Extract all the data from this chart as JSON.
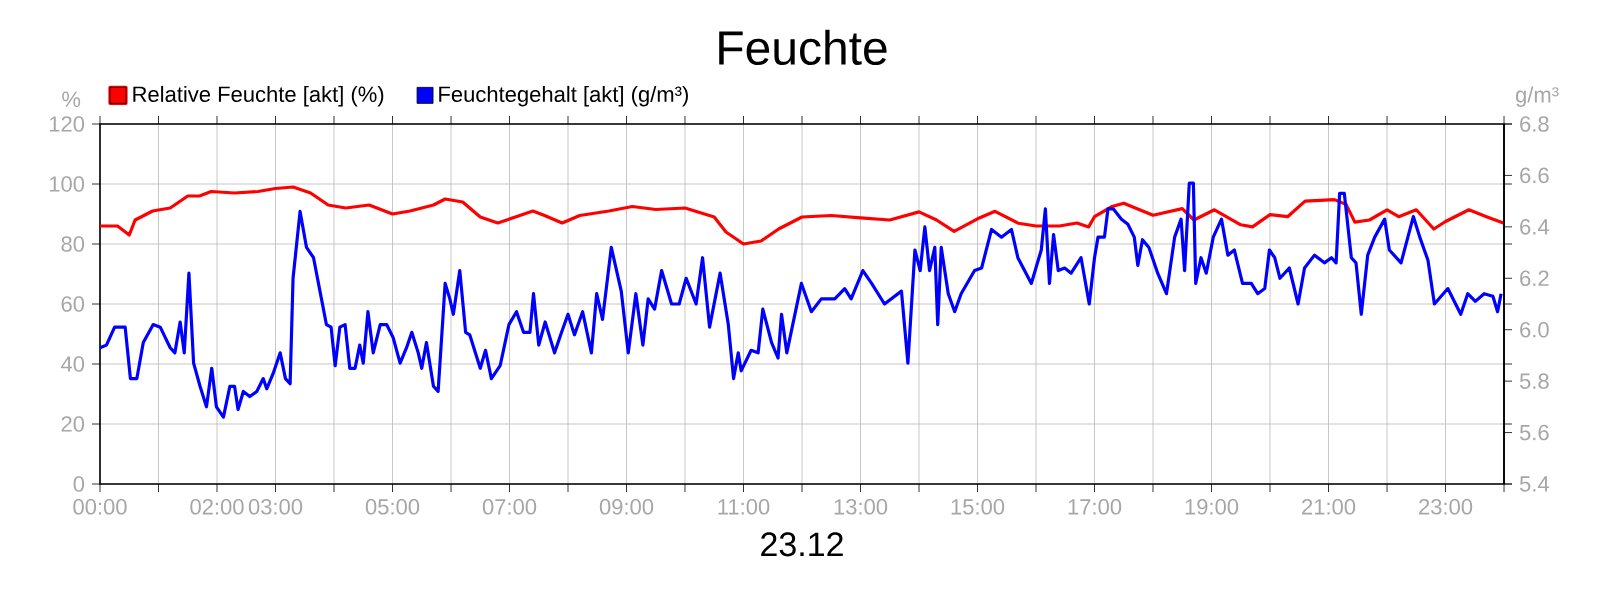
{
  "chart_data": {
    "type": "line",
    "title": "Feuchte",
    "xlabel": "23.12",
    "ylabel": "%",
    "y2label": "g/m³",
    "xlim": [
      0,
      24
    ],
    "xticks": [
      {
        "value": 0,
        "label": "00:00"
      },
      {
        "value": 1,
        "label": null
      },
      {
        "value": 2,
        "label": "02:00"
      },
      {
        "value": 3,
        "label": "03:00"
      },
      {
        "value": 4,
        "label": null
      },
      {
        "value": 5,
        "label": "05:00"
      },
      {
        "value": 6,
        "label": null
      },
      {
        "value": 7,
        "label": "07:00"
      },
      {
        "value": 8,
        "label": null
      },
      {
        "value": 9,
        "label": "09:00"
      },
      {
        "value": 10,
        "label": null
      },
      {
        "value": 11,
        "label": "11:00"
      },
      {
        "value": 12,
        "label": null
      },
      {
        "value": 13,
        "label": "13:00"
      },
      {
        "value": 14,
        "label": null
      },
      {
        "value": 15,
        "label": "15:00"
      },
      {
        "value": 16,
        "label": null
      },
      {
        "value": 17,
        "label": "17:00"
      },
      {
        "value": 18,
        "label": null
      },
      {
        "value": 19,
        "label": "19:00"
      },
      {
        "value": 20,
        "label": null
      },
      {
        "value": 21,
        "label": "21:00"
      },
      {
        "value": 22,
        "label": null
      },
      {
        "value": 23,
        "label": "23:00"
      },
      {
        "value": 24,
        "label": null
      }
    ],
    "ylim": [
      0,
      120
    ],
    "yticks": [
      0,
      20,
      40,
      60,
      80,
      100,
      120
    ],
    "y2lim": [
      5.4,
      6.8
    ],
    "y2ticks": [
      5.4,
      5.6,
      5.8,
      {
        "value": 6,
        "label": "6.0"
      },
      6.2,
      6.4,
      6.6,
      6.8
    ],
    "grid": true,
    "legend": "top left",
    "series": [
      {
        "name": "Relative Feuchte [akt] (%)",
        "color": "#ff0000",
        "x": [
          0,
          0.3,
          0.5,
          0.6,
          0.9,
          1.2,
          1.5,
          1.7,
          1.9,
          2.3,
          2.7,
          3.0,
          3.3,
          3.6,
          3.9,
          4.2,
          4.6,
          5.0,
          5.3,
          5.7,
          5.9,
          6.2,
          6.5,
          6.8,
          7.1,
          7.4,
          7.6,
          7.9,
          8.2,
          8.7,
          9.1,
          9.5,
          10.0,
          10.5,
          10.7,
          11.0,
          11.3,
          11.6,
          12.0,
          12.5,
          13.0,
          13.5,
          14.0,
          14.3,
          14.6,
          15.0,
          15.3,
          15.7,
          16.0,
          16.4,
          16.7,
          16.9,
          17.0,
          17.3,
          17.5,
          18.0,
          18.5,
          18.7,
          19.05,
          19.5,
          19.7,
          20.0,
          20.3,
          20.6,
          21.1,
          21.3,
          21.45,
          21.7,
          22.0,
          22.2,
          22.5,
          22.8,
          23.0,
          23.4,
          23.7,
          24.0
        ],
        "values": [
          86,
          86,
          83,
          88,
          91,
          92,
          96,
          96,
          97.5,
          97,
          97.5,
          98.5,
          99,
          97,
          93,
          92,
          93,
          90,
          91,
          93,
          95,
          94,
          89,
          87,
          89,
          91,
          89.5,
          87,
          89.5,
          91,
          92.5,
          91.5,
          92,
          89,
          84,
          80,
          81,
          85,
          89,
          89.5,
          88.7,
          88,
          90.7,
          88,
          84.2,
          88.4,
          90.9,
          86.9,
          86,
          86,
          87,
          85.7,
          89.1,
          92.5,
          93.6,
          89.6,
          91.8,
          88,
          91.4,
          86.4,
          85.7,
          89.8,
          89.1,
          94.3,
          94.8,
          93.2,
          87.3,
          88,
          91.4,
          89.1,
          91.4,
          85,
          87.5,
          91.4,
          89.1,
          86.9
        ]
      },
      {
        "name": "Feuchtegehalt [akt] (g/m³)",
        "color": "#0000ff",
        "axis": "y2",
        "x": [
          0.0,
          0.11,
          0.25,
          0.34,
          0.43,
          0.52,
          0.63,
          0.74,
          0.91,
          1.03,
          1.2,
          1.28,
          1.37,
          1.44,
          1.52,
          1.6,
          1.71,
          1.82,
          1.91,
          1.99,
          2.11,
          2.22,
          2.3,
          2.36,
          2.45,
          2.56,
          2.68,
          2.79,
          2.85,
          2.96,
          3.08,
          3.17,
          3.25,
          3.3,
          3.42,
          3.53,
          3.65,
          3.76,
          3.87,
          3.95,
          4.02,
          4.1,
          4.19,
          4.27,
          4.36,
          4.44,
          4.5,
          4.58,
          4.67,
          4.79,
          4.9,
          5.01,
          5.13,
          5.24,
          5.33,
          5.44,
          5.5,
          5.58,
          5.7,
          5.78,
          5.9,
          5.98,
          6.04,
          6.15,
          6.25,
          6.32,
          6.5,
          6.59,
          6.69,
          6.84,
          6.99,
          7.12,
          7.24,
          7.35,
          7.41,
          7.5,
          7.61,
          7.77,
          7.89,
          8.0,
          8.11,
          8.25,
          8.4,
          8.49,
          8.59,
          8.74,
          8.91,
          9.03,
          9.16,
          9.28,
          9.37,
          9.48,
          9.6,
          9.77,
          9.9,
          10.02,
          10.19,
          10.3,
          10.42,
          10.6,
          10.74,
          10.83,
          10.91,
          10.96,
          11.13,
          11.25,
          11.33,
          11.48,
          11.59,
          11.65,
          11.74,
          11.99,
          12.16,
          12.33,
          12.56,
          12.73,
          12.84,
          13.04,
          13.19,
          13.41,
          13.7,
          13.81,
          13.93,
          14.02,
          14.1,
          14.18,
          14.27,
          14.32,
          14.38,
          14.5,
          14.61,
          14.72,
          14.95,
          15.07,
          15.24,
          15.41,
          15.58,
          15.69,
          15.92,
          16.09,
          16.16,
          16.23,
          16.3,
          16.38,
          16.49,
          16.6,
          16.77,
          16.91,
          17.0,
          17.06,
          17.17,
          17.23,
          17.32,
          17.46,
          17.57,
          17.68,
          17.74,
          17.82,
          17.93,
          18.08,
          18.23,
          18.37,
          18.48,
          18.54,
          18.62,
          18.69,
          18.73,
          18.82,
          18.91,
          19.03,
          19.17,
          19.28,
          19.39,
          19.53,
          19.68,
          19.79,
          19.91,
          19.99,
          20.08,
          20.17,
          20.33,
          20.48,
          20.59,
          20.76,
          20.93,
          21.05,
          21.13,
          21.19,
          21.27,
          21.39,
          21.47,
          21.56,
          21.67,
          21.79,
          21.96,
          22.04,
          22.24,
          22.45,
          22.56,
          22.7,
          22.81,
          23.04,
          23.26,
          23.38,
          23.51,
          23.66,
          23.81,
          23.89,
          23.95
        ],
        "values": [
          5.93,
          5.94,
          6.01,
          6.01,
          6.01,
          5.81,
          5.81,
          5.95,
          6.02,
          6.01,
          5.93,
          5.91,
          6.03,
          5.91,
          6.22,
          5.87,
          5.78,
          5.7,
          5.85,
          5.7,
          5.66,
          5.78,
          5.78,
          5.69,
          5.76,
          5.74,
          5.76,
          5.81,
          5.77,
          5.83,
          5.91,
          5.81,
          5.79,
          6.2,
          6.46,
          6.32,
          6.28,
          6.15,
          6.02,
          6.01,
          5.86,
          6.01,
          6.02,
          5.85,
          5.85,
          5.94,
          5.87,
          6.07,
          5.91,
          6.02,
          6.02,
          5.97,
          5.87,
          5.93,
          5.99,
          5.91,
          5.85,
          5.95,
          5.78,
          5.76,
          6.18,
          6.12,
          6.06,
          6.23,
          5.99,
          5.98,
          5.85,
          5.92,
          5.81,
          5.86,
          6.02,
          6.07,
          5.99,
          5.99,
          6.14,
          5.94,
          6.03,
          5.91,
          5.99,
          6.06,
          5.98,
          6.07,
          5.91,
          6.14,
          6.04,
          6.32,
          6.15,
          5.91,
          6.14,
          5.94,
          6.12,
          6.08,
          6.23,
          6.1,
          6.1,
          6.2,
          6.1,
          6.28,
          6.01,
          6.22,
          6.02,
          5.81,
          5.91,
          5.84,
          5.92,
          5.91,
          6.08,
          5.95,
          5.89,
          6.06,
          5.91,
          6.18,
          6.07,
          6.12,
          6.12,
          6.16,
          6.12,
          6.23,
          6.18,
          6.1,
          6.15,
          5.87,
          6.31,
          6.23,
          6.4,
          6.23,
          6.32,
          6.02,
          6.32,
          6.14,
          6.07,
          6.14,
          6.23,
          6.24,
          6.39,
          6.36,
          6.39,
          6.28,
          6.18,
          6.31,
          6.47,
          6.18,
          6.37,
          6.23,
          6.24,
          6.22,
          6.28,
          6.1,
          6.28,
          6.36,
          6.36,
          6.47,
          6.47,
          6.43,
          6.41,
          6.36,
          6.25,
          6.35,
          6.32,
          6.22,
          6.14,
          6.36,
          6.43,
          6.23,
          6.57,
          6.57,
          6.18,
          6.28,
          6.22,
          6.36,
          6.43,
          6.29,
          6.31,
          6.18,
          6.18,
          6.14,
          6.16,
          6.31,
          6.28,
          6.2,
          6.24,
          6.1,
          6.24,
          6.29,
          6.26,
          6.28,
          6.26,
          6.53,
          6.53,
          6.28,
          6.26,
          6.06,
          6.29,
          6.36,
          6.43,
          6.31,
          6.26,
          6.44,
          6.36,
          6.27,
          6.1,
          6.16,
          6.06,
          6.14,
          6.11,
          6.14,
          6.13,
          6.07,
          6.14
        ]
      }
    ]
  }
}
